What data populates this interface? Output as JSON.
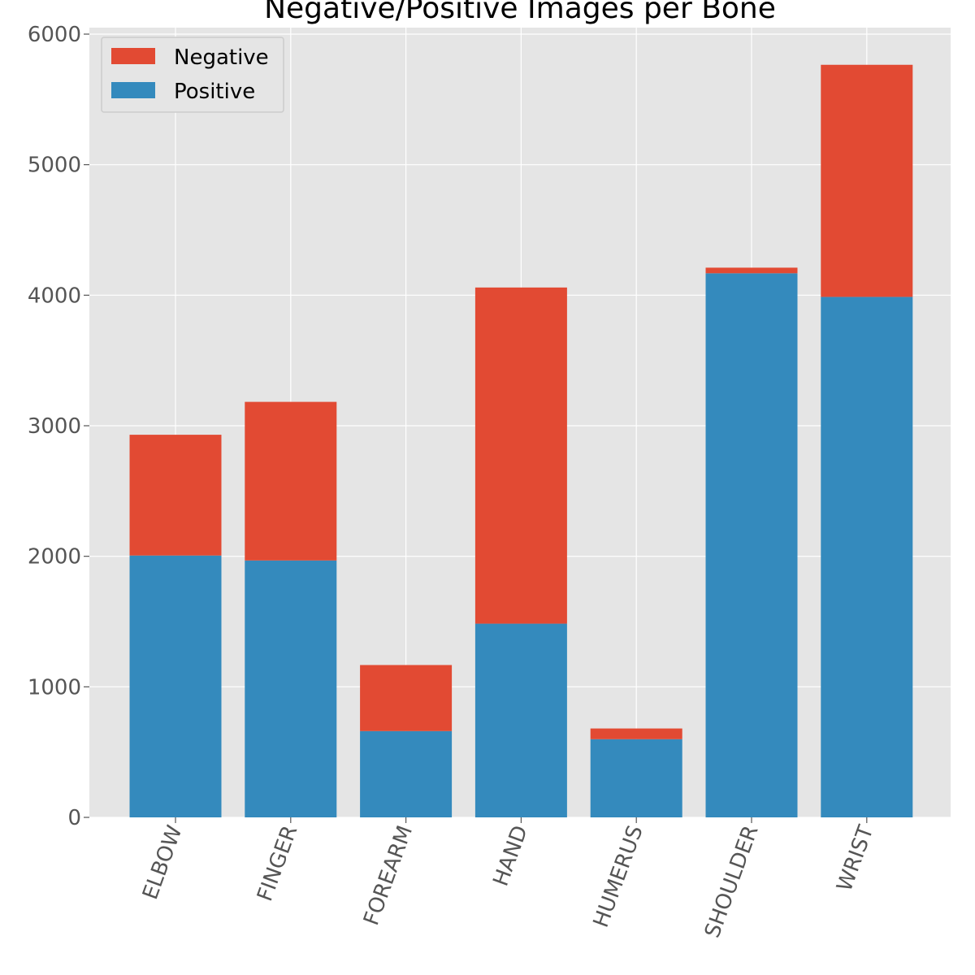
{
  "chart_data": {
    "type": "bar",
    "stacked": true,
    "title": "Negative/Positive Images per Bone",
    "xlabel": "",
    "ylabel": "",
    "categories": [
      "ELBOW",
      "FINGER",
      "FOREARM",
      "HAND",
      "HUMERUS",
      "SHOULDER",
      "WRIST"
    ],
    "series": [
      {
        "name": "Positive",
        "color": "#348abd",
        "values": [
          2006,
          1968,
          661,
          1484,
          599,
          4168,
          3987
        ]
      },
      {
        "name": "Negative",
        "color": "#e24a33",
        "values": [
          925,
          1215,
          506,
          2575,
          82,
          43,
          1778
        ]
      }
    ],
    "legend_order": [
      "Negative",
      "Positive"
    ],
    "legend_position": "upper-left",
    "ylim": [
      0,
      6000
    ],
    "yticks": [
      0,
      1000,
      2000,
      3000,
      4000,
      5000,
      6000
    ],
    "grid": true,
    "x_tick_rotation_deg": -70,
    "plot_background": "#e5e5e5",
    "grid_color": "#ffffff"
  }
}
